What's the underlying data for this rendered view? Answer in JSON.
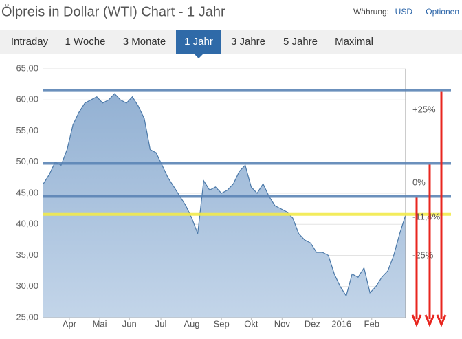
{
  "header": {
    "title": "Ölpreis in Dollar (WTI) Chart - 1 Jahr",
    "currency_label": "Währung:",
    "currency": "USD",
    "options": "Optionen"
  },
  "tabs": [
    "Intraday",
    "1 Woche",
    "3 Monate",
    "1 Jahr",
    "3 Jahre",
    "5 Jahre",
    "Maximal"
  ],
  "active_tab": 3,
  "chart_data": {
    "type": "area",
    "color": "#4a78a8",
    "fill": "#a9c1dc",
    "values": [
      46.5,
      48,
      50,
      49.5,
      52,
      56,
      58,
      59.5,
      60,
      60.5,
      59.5,
      60,
      61,
      60,
      59.5,
      60.5,
      59,
      57,
      52,
      51.5,
      49.5,
      47.5,
      46,
      44.5,
      43,
      41,
      38.5,
      47,
      45.5,
      46,
      45,
      45.5,
      46.5,
      48.5,
      49.5,
      46,
      45,
      46.5,
      44.5,
      43,
      42.5,
      42,
      41,
      38.5,
      37.5,
      37,
      35.5,
      35.5,
      35,
      32,
      30,
      28.5,
      32,
      31.5,
      33,
      29,
      30,
      31.5,
      32.5,
      35,
      38.5,
      41.5
    ],
    "xlim": [
      0,
      61
    ],
    "xticks": [
      {
        "value": 4.4,
        "label": "Apr"
      },
      {
        "value": 9.5,
        "label": "Mai"
      },
      {
        "value": 14.5,
        "label": "Jun"
      },
      {
        "value": 19.8,
        "label": "Jul"
      },
      {
        "value": 25,
        "label": "Aug"
      },
      {
        "value": 30,
        "label": "Sep"
      },
      {
        "value": 35,
        "label": "Okt"
      },
      {
        "value": 40.2,
        "label": "Nov"
      },
      {
        "value": 45.3,
        "label": "Dez"
      },
      {
        "value": 50.2,
        "label": "2016"
      },
      {
        "value": 55.3,
        "label": "Feb"
      }
    ],
    "ylim": [
      25,
      65
    ],
    "yticks": [
      {
        "value": 25,
        "label": "25,00"
      },
      {
        "value": 30,
        "label": "30,00"
      },
      {
        "value": 35,
        "label": "35,00"
      },
      {
        "value": 40,
        "label": "40,00"
      },
      {
        "value": 45,
        "label": "45,00"
      },
      {
        "value": 50,
        "label": "50,00"
      },
      {
        "value": 55,
        "label": "55,00"
      },
      {
        "value": 60,
        "label": "60,00"
      },
      {
        "value": 65,
        "label": "65,00"
      }
    ],
    "grid": true,
    "levels": [
      {
        "value": 61.5,
        "color": "#5b84b5"
      },
      {
        "value": 49.8,
        "color": "#5b84b5"
      },
      {
        "value": 44.5,
        "color": "#5b84b5"
      },
      {
        "value": 41.6,
        "color": "#f2ea4a"
      }
    ],
    "annotations": [
      "+25%",
      "0%",
      "-11,4%",
      "-25%"
    ],
    "arrow_color": "#e8261f"
  }
}
